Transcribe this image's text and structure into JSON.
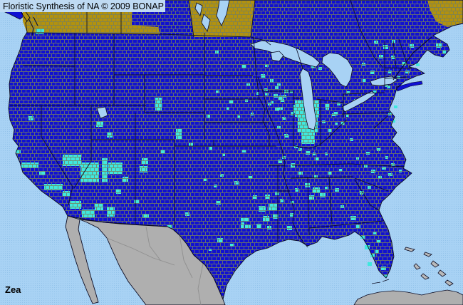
{
  "header": {
    "title": "Floristic Synthesis of NA © 2009 BONAP"
  },
  "footer": {
    "taxon": "Zea"
  },
  "map": {
    "colors": {
      "ocean": "#A8D2F4",
      "ocean_dot": "#93C3EA",
      "land_present": "#1010D2",
      "county_present": "#3FE8DE",
      "region_absent": "#B2920E",
      "outside_area": "#AFAFAF",
      "outside_line": "#8F8F8F",
      "island": "#B9B9B9",
      "lake": "#A8D2F4",
      "county_line": "#76805E",
      "border_dark": "#0A0A22",
      "label_bg": "#BFDAF3",
      "text": "#000000"
    },
    "county_records": [
      [
        50,
        40,
        12,
        8
      ],
      [
        40,
        163,
        7,
        6
      ],
      [
        22,
        210,
        7,
        5
      ],
      [
        30,
        228,
        24,
        8
      ],
      [
        55,
        240,
        8,
        6
      ],
      [
        62,
        258,
        26,
        9
      ],
      [
        88,
        268,
        10,
        7
      ],
      [
        88,
        217,
        26,
        16
      ],
      [
        113,
        228,
        26,
        28
      ],
      [
        143,
        222,
        8,
        34
      ],
      [
        152,
        228,
        20,
        16
      ],
      [
        98,
        282,
        16,
        11
      ],
      [
        115,
        294,
        18,
        11
      ],
      [
        133,
        286,
        12,
        9
      ],
      [
        150,
        290,
        11,
        14
      ],
      [
        135,
        170,
        10,
        8
      ],
      [
        150,
        186,
        8,
        7
      ],
      [
        172,
        248,
        8,
        7
      ],
      [
        163,
        266,
        7,
        6
      ],
      [
        200,
        300,
        9,
        6
      ],
      [
        235,
        316,
        7,
        4
      ],
      [
        188,
        280,
        7,
        5
      ],
      [
        218,
        137,
        9,
        18
      ],
      [
        247,
        181,
        8,
        14
      ],
      [
        199,
        222,
        9,
        8
      ],
      [
        196,
        233,
        11,
        9
      ],
      [
        226,
        210,
        6,
        5
      ],
      [
        302,
        71,
        5,
        4
      ],
      [
        340,
        91,
        5,
        5
      ],
      [
        346,
        117,
        5,
        4
      ],
      [
        372,
        90,
        5,
        4
      ],
      [
        303,
        127,
        5,
        4
      ],
      [
        322,
        141,
        5,
        4
      ],
      [
        290,
        161,
        5,
        5
      ],
      [
        318,
        150,
        4,
        4
      ],
      [
        344,
        139,
        4,
        4
      ],
      [
        333,
        162,
        4,
        4
      ],
      [
        352,
        158,
        4,
        4
      ],
      [
        372,
        130,
        5,
        4
      ],
      [
        386,
        121,
        5,
        4
      ],
      [
        398,
        133,
        4,
        4
      ],
      [
        407,
        127,
        4,
        4
      ],
      [
        392,
        150,
        5,
        4
      ],
      [
        380,
        142,
        4,
        4
      ],
      [
        293,
        206,
        5,
        5
      ],
      [
        312,
        215,
        4,
        4
      ],
      [
        340,
        210,
        5,
        4
      ],
      [
        265,
        200,
        6,
        5
      ],
      [
        399,
        188,
        5,
        5
      ],
      [
        413,
        204,
        5,
        4
      ],
      [
        396,
        219,
        5,
        4
      ],
      [
        429,
        196,
        4,
        4
      ],
      [
        439,
        214,
        4,
        4
      ],
      [
        408,
        229,
        6,
        6
      ],
      [
        390,
        224,
        6,
        5
      ],
      [
        309,
        244,
        5,
        4
      ],
      [
        329,
        254,
        6,
        5
      ],
      [
        300,
        259,
        5,
        4
      ],
      [
        349,
        247,
        5,
        4
      ],
      [
        286,
        250,
        4,
        4
      ],
      [
        303,
        282,
        7,
        5
      ],
      [
        338,
        306,
        12,
        5
      ],
      [
        338,
        312,
        5,
        8
      ],
      [
        344,
        315,
        8,
        5
      ],
      [
        305,
        334,
        8,
        6
      ],
      [
        323,
        342,
        6,
        4
      ],
      [
        293,
        349,
        4,
        3
      ],
      [
        260,
        298,
        6,
        5
      ],
      [
        355,
        274,
        6,
        5
      ],
      [
        393,
        279,
        5,
        5
      ],
      [
        363,
        289,
        10,
        8
      ],
      [
        377,
        286,
        12,
        9
      ],
      [
        369,
        303,
        9,
        8
      ],
      [
        383,
        301,
        8,
        6
      ],
      [
        360,
        314,
        7,
        6
      ],
      [
        375,
        317,
        6,
        5
      ],
      [
        403,
        317,
        7,
        6
      ],
      [
        407,
        299,
        5,
        5
      ],
      [
        372,
        273,
        7,
        6
      ],
      [
        386,
        269,
        6,
        5
      ],
      [
        414,
        264,
        5,
        5
      ],
      [
        408,
        282,
        5,
        4
      ],
      [
        366,
        104,
        6,
        5
      ],
      [
        379,
        111,
        5,
        5
      ],
      [
        389,
        117,
        5,
        4
      ],
      [
        371,
        124,
        5,
        4
      ],
      [
        384,
        132,
        6,
        5
      ],
      [
        394,
        139,
        5,
        4
      ],
      [
        376,
        144,
        5,
        4
      ],
      [
        360,
        129,
        4,
        4
      ],
      [
        437,
        91,
        6,
        5
      ],
      [
        447,
        94,
        5,
        4
      ],
      [
        457,
        150,
        5,
        4
      ],
      [
        466,
        159,
        5,
        4
      ],
      [
        452,
        169,
        5,
        4
      ],
      [
        470,
        172,
        4,
        4
      ],
      [
        391,
        134,
        7,
        6
      ],
      [
        399,
        126,
        6,
        5
      ],
      [
        386,
        151,
        6,
        5
      ],
      [
        396,
        164,
        5,
        4
      ],
      [
        389,
        177,
        5,
        4
      ],
      [
        401,
        189,
        5,
        4
      ],
      [
        408,
        157,
        5,
        5
      ],
      [
        414,
        141,
        34,
        23
      ],
      [
        418,
        163,
        28,
        23
      ],
      [
        423,
        185,
        19,
        17
      ],
      [
        411,
        147,
        5,
        12
      ],
      [
        456,
        146,
        6,
        5
      ],
      [
        469,
        157,
        5,
        5
      ],
      [
        479,
        171,
        5,
        4
      ],
      [
        461,
        181,
        5,
        4
      ],
      [
        473,
        144,
        5,
        4
      ],
      [
        486,
        160,
        4,
        4
      ],
      [
        429,
        212,
        6,
        5
      ],
      [
        443,
        221,
        5,
        4
      ],
      [
        419,
        208,
        5,
        4
      ],
      [
        456,
        214,
        4,
        4
      ],
      [
        419,
        241,
        6,
        4
      ],
      [
        441,
        246,
        5,
        4
      ],
      [
        461,
        241,
        5,
        4
      ],
      [
        476,
        237,
        4,
        4
      ],
      [
        428,
        257,
        7,
        6
      ],
      [
        439,
        263,
        10,
        8
      ],
      [
        449,
        271,
        8,
        6
      ],
      [
        434,
        274,
        7,
        6
      ],
      [
        456,
        262,
        5,
        4
      ],
      [
        470,
        264,
        6,
        5
      ],
      [
        492,
        303,
        8,
        6
      ],
      [
        500,
        315,
        6,
        5
      ],
      [
        478,
        288,
        5,
        4
      ],
      [
        505,
        268,
        6,
        5
      ],
      [
        516,
        261,
        5,
        4
      ],
      [
        511,
        231,
        5,
        4
      ],
      [
        521,
        238,
        6,
        5
      ],
      [
        536,
        234,
        6,
        4
      ],
      [
        549,
        229,
        5,
        4
      ],
      [
        531,
        247,
        5,
        4
      ],
      [
        545,
        243,
        6,
        4
      ],
      [
        560,
        238,
        4,
        4
      ],
      [
        514,
        213,
        5,
        4
      ],
      [
        529,
        208,
        5,
        4
      ],
      [
        541,
        219,
        4,
        4
      ],
      [
        500,
        220,
        4,
        4
      ],
      [
        491,
        194,
        5,
        4
      ],
      [
        486,
        128,
        5,
        4
      ],
      [
        497,
        139,
        5,
        4
      ],
      [
        506,
        330,
        6,
        5
      ],
      [
        512,
        344,
        7,
        6
      ],
      [
        520,
        356,
        6,
        5
      ],
      [
        516,
        368,
        6,
        5
      ],
      [
        527,
        351,
        5,
        4
      ],
      [
        529,
        337,
        5,
        4
      ],
      [
        535,
        374,
        7,
        5
      ],
      [
        539,
        385,
        5,
        4
      ],
      [
        524,
        325,
        5,
        4
      ],
      [
        525,
        57,
        6,
        5
      ],
      [
        532,
        77,
        6,
        5
      ],
      [
        520,
        99,
        6,
        5
      ],
      [
        509,
        111,
        5,
        4
      ],
      [
        524,
        127,
        5,
        4
      ],
      [
        543,
        120,
        5,
        4
      ],
      [
        508,
        88,
        5,
        4
      ],
      [
        538,
        63,
        7,
        6
      ],
      [
        550,
        56,
        5,
        5
      ],
      [
        549,
        78,
        6,
        5
      ],
      [
        564,
        87,
        6,
        5
      ],
      [
        545,
        99,
        5,
        4
      ],
      [
        557,
        107,
        5,
        4
      ],
      [
        569,
        99,
        6,
        4
      ],
      [
        540,
        118,
        5,
        4
      ],
      [
        575,
        62,
        6,
        5
      ],
      [
        584,
        89,
        5,
        4
      ],
      [
        553,
        148,
        5,
        4
      ],
      [
        545,
        158,
        5,
        4
      ],
      [
        551,
        168,
        4,
        4
      ],
      [
        612,
        61,
        8,
        6
      ],
      [
        621,
        71,
        5,
        4
      ]
    ]
  }
}
